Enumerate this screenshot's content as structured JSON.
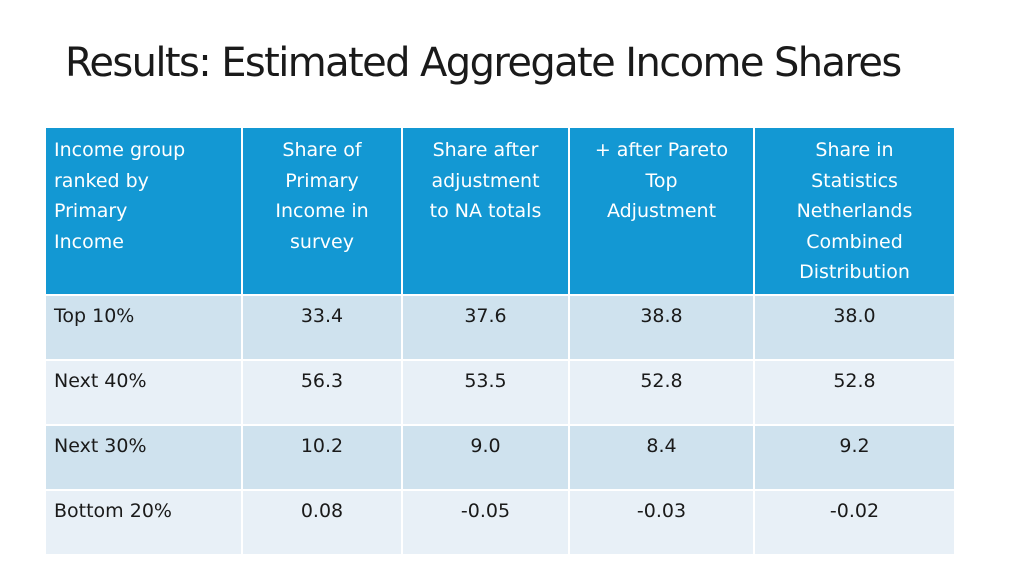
{
  "title": "Results: Estimated Aggregate Income Shares",
  "table": {
    "headers": [
      "Income group\nranked by\nPrimary\nIncome",
      "Share of\nPrimary\nIncome  in\nsurvey",
      "Share after\nadjustment\nto NA totals",
      "+ after Pareto\nTop\nAdjustment",
      "Share in\nStatistics\nNetherlands\nCombined\nDistribution"
    ],
    "rows": [
      [
        "Top 10%",
        "33.4",
        "37.6",
        "38.8",
        "38.0"
      ],
      [
        "Next 40%",
        "56.3",
        "53.5",
        "52.8",
        "52.8"
      ],
      [
        "Next 30%",
        "10.2",
        "9.0",
        "8.4",
        "9.2"
      ],
      [
        "Bottom 20%",
        "0.08",
        "-0.05",
        "-0.03",
        "-0.02"
      ]
    ]
  },
  "colors": {
    "header_background": "#1398d3",
    "header_text": "#ffffff",
    "row_odd_background": "#cfe2ee",
    "row_even_background": "#e8f0f7"
  }
}
